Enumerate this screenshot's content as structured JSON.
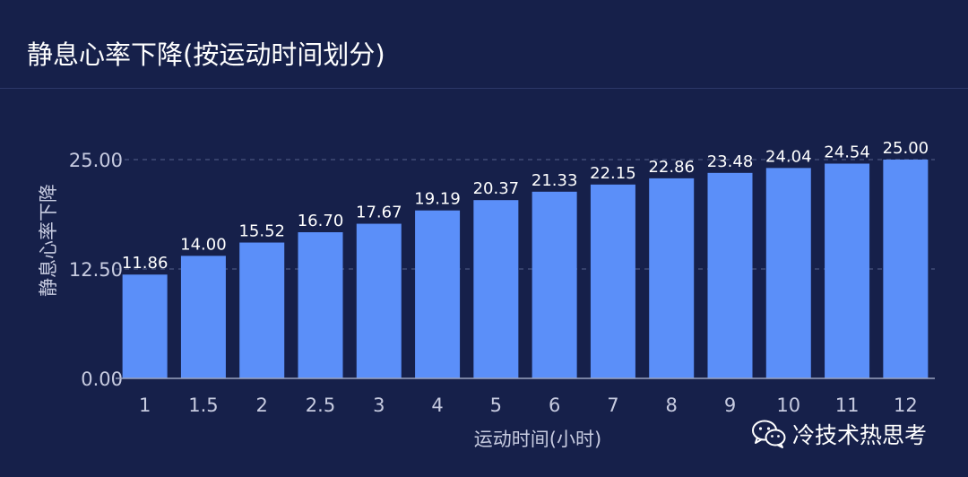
{
  "chart_data": {
    "type": "bar",
    "title": "静息心率下降(按运动时间划分)",
    "xlabel": "运动时间(小时)",
    "ylabel": "静息心率下降",
    "categories": [
      "1",
      "1.5",
      "2",
      "2.5",
      "3",
      "4",
      "5",
      "6",
      "7",
      "8",
      "9",
      "10",
      "11",
      "12"
    ],
    "values": [
      11.86,
      14.0,
      15.52,
      16.7,
      17.67,
      19.19,
      20.37,
      21.33,
      22.15,
      22.86,
      23.48,
      24.04,
      24.54,
      25.0
    ],
    "value_labels": [
      "11.86",
      "14.00",
      "15.52",
      "16.70",
      "17.67",
      "19.19",
      "20.37",
      "21.33",
      "22.15",
      "22.86",
      "23.48",
      "24.04",
      "24.54",
      "25.00"
    ],
    "ylim": [
      0,
      25
    ],
    "yticks": [
      0,
      12.5,
      25
    ],
    "ytick_labels": [
      "0.00",
      "12.50",
      "25.00"
    ],
    "grid": true,
    "bar_color": "#5b8ff9"
  },
  "watermark": {
    "icon": "wechat-icon",
    "text": "冷技术热思考"
  }
}
